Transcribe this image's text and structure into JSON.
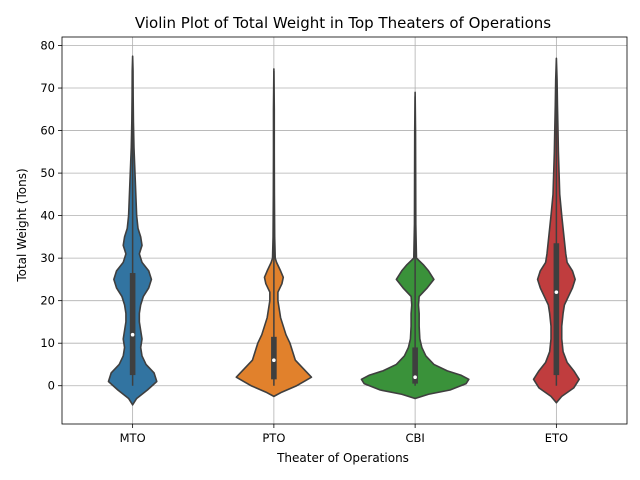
{
  "chart_data": {
    "type": "violin",
    "title": "Violin Plot of Total Weight in Top Theaters of Operations",
    "xlabel": "Theater of Operations",
    "ylabel": "Total Weight (Tons)",
    "ylim": [
      -9,
      82
    ],
    "yticks": [
      0,
      10,
      20,
      30,
      40,
      50,
      60,
      70,
      80
    ],
    "grid": true,
    "categories": [
      "MTO",
      "PTO",
      "CBI",
      "ETO"
    ],
    "series": [
      {
        "category": "MTO",
        "color": "#3274a1",
        "range": [
          -4.5,
          77.5
        ],
        "whisker": [
          0,
          72
        ],
        "q1": 2.5,
        "median": 12,
        "q3": 26.5,
        "density": [
          [
            -4.5,
            0
          ],
          [
            -3,
            0.03
          ],
          [
            -1,
            0.11
          ],
          [
            1,
            0.18
          ],
          [
            3,
            0.16
          ],
          [
            5,
            0.1
          ],
          [
            7,
            0.07
          ],
          [
            9,
            0.06
          ],
          [
            11,
            0.07
          ],
          [
            13,
            0.06
          ],
          [
            15,
            0.05
          ],
          [
            17,
            0.05
          ],
          [
            19,
            0.06
          ],
          [
            21,
            0.08
          ],
          [
            23,
            0.12
          ],
          [
            25,
            0.14
          ],
          [
            27,
            0.12
          ],
          [
            29,
            0.07
          ],
          [
            31,
            0.05
          ],
          [
            33,
            0.07
          ],
          [
            35,
            0.06
          ],
          [
            37,
            0.04
          ],
          [
            40,
            0.03
          ],
          [
            44,
            0.025
          ],
          [
            48,
            0.02
          ],
          [
            52,
            0.015
          ],
          [
            56,
            0.01
          ],
          [
            62,
            0.006
          ],
          [
            68,
            0.004
          ],
          [
            74,
            0.003
          ],
          [
            77.5,
            0
          ]
        ]
      },
      {
        "category": "PTO",
        "color": "#e1812c",
        "range": [
          -2.5,
          74.5
        ],
        "whisker": [
          0,
          74
        ],
        "q1": 1.5,
        "median": 6,
        "q3": 11.5,
        "density": [
          [
            -2.5,
            0
          ],
          [
            -1.5,
            0.06
          ],
          [
            0,
            0.17
          ],
          [
            2,
            0.28
          ],
          [
            4,
            0.22
          ],
          [
            6,
            0.16
          ],
          [
            8,
            0.14
          ],
          [
            10,
            0.12
          ],
          [
            12,
            0.09
          ],
          [
            14,
            0.07
          ],
          [
            16,
            0.05
          ],
          [
            18,
            0.04
          ],
          [
            20,
            0.03
          ],
          [
            22,
            0.03
          ],
          [
            24,
            0.06
          ],
          [
            25.5,
            0.07
          ],
          [
            27,
            0.05
          ],
          [
            29,
            0.02
          ],
          [
            30,
            0.01
          ],
          [
            35,
            0.006
          ],
          [
            45,
            0.004
          ],
          [
            55,
            0.003
          ],
          [
            65,
            0.003
          ],
          [
            74.5,
            0
          ]
        ]
      },
      {
        "category": "CBI",
        "color": "#3a923a",
        "range": [
          -3,
          69
        ],
        "whisker": [
          0,
          68
        ],
        "q1": 0.5,
        "median": 2,
        "q3": 9,
        "density": [
          [
            -3,
            0
          ],
          [
            -2,
            0.1
          ],
          [
            -1,
            0.26
          ],
          [
            0.5,
            0.38
          ],
          [
            1.5,
            0.4
          ],
          [
            2.5,
            0.34
          ],
          [
            3.5,
            0.24
          ],
          [
            5,
            0.14
          ],
          [
            7,
            0.08
          ],
          [
            9,
            0.05
          ],
          [
            11,
            0.035
          ],
          [
            14,
            0.03
          ],
          [
            17,
            0.03
          ],
          [
            19,
            0.025
          ],
          [
            21,
            0.03
          ],
          [
            23,
            0.09
          ],
          [
            25,
            0.14
          ],
          [
            27,
            0.1
          ],
          [
            28.5,
            0.06
          ],
          [
            30,
            0.01
          ],
          [
            38,
            0.005
          ],
          [
            50,
            0.004
          ],
          [
            60,
            0.003
          ],
          [
            69,
            0
          ]
        ]
      },
      {
        "category": "ETO",
        "color": "#c03d3e",
        "range": [
          -4,
          77
        ],
        "whisker": [
          0,
          73
        ],
        "q1": 2.5,
        "median": 22,
        "q3": 33.5,
        "density": [
          [
            -4,
            0
          ],
          [
            -2.5,
            0.04
          ],
          [
            -0.5,
            0.13
          ],
          [
            1.5,
            0.17
          ],
          [
            3.5,
            0.13
          ],
          [
            5.5,
            0.08
          ],
          [
            8,
            0.05
          ],
          [
            11,
            0.04
          ],
          [
            14,
            0.04
          ],
          [
            17,
            0.05
          ],
          [
            19,
            0.06
          ],
          [
            21,
            0.09
          ],
          [
            23,
            0.12
          ],
          [
            25,
            0.14
          ],
          [
            27,
            0.12
          ],
          [
            29,
            0.08
          ],
          [
            31,
            0.07
          ],
          [
            34,
            0.06
          ],
          [
            37,
            0.05
          ],
          [
            40,
            0.04
          ],
          [
            45,
            0.025
          ],
          [
            50,
            0.02
          ],
          [
            55,
            0.015
          ],
          [
            60,
            0.012
          ],
          [
            66,
            0.008
          ],
          [
            72,
            0.005
          ],
          [
            77,
            0
          ]
        ]
      }
    ]
  }
}
